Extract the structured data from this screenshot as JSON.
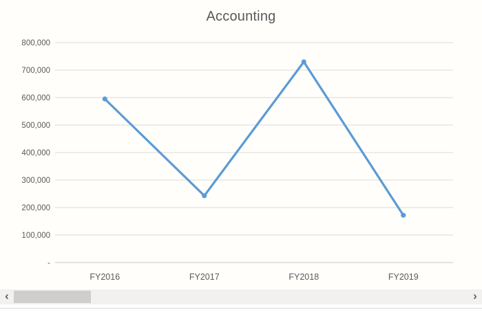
{
  "chart_data": {
    "type": "line",
    "title": "Accounting",
    "categories": [
      "FY2016",
      "FY2017",
      "FY2018",
      "FY2019"
    ],
    "series": [
      {
        "name": "Accounting",
        "values": [
          595000,
          243000,
          730000,
          172000
        ]
      }
    ],
    "xlabel": "",
    "ylabel": "",
    "ylim": [
      0,
      800000
    ],
    "ytick_interval": 100000,
    "ytick_labels": [
      "-",
      "100,000",
      "200,000",
      "300,000",
      "400,000",
      "500,000",
      "600,000",
      "700,000",
      "800,000"
    ],
    "grid": true,
    "legend": "none",
    "marker": "circle"
  },
  "colors": {
    "line": "#5B9BD5",
    "marker": "#5B9BD5",
    "gridline": "#D9D9D9",
    "axis_line": "#C6C6C6",
    "tick_text": "#595959",
    "title_text": "#595959",
    "chart_background": "#FFFEFB",
    "scrollbar_track": "#F2F1EF",
    "scrollbar_thumb": "#CFCECD",
    "scrollbar_arrow": "#5F5F5F",
    "bottom_divider": "#D9D9D9"
  },
  "icons": {
    "chevron_left": "‹",
    "chevron_right": "›"
  }
}
